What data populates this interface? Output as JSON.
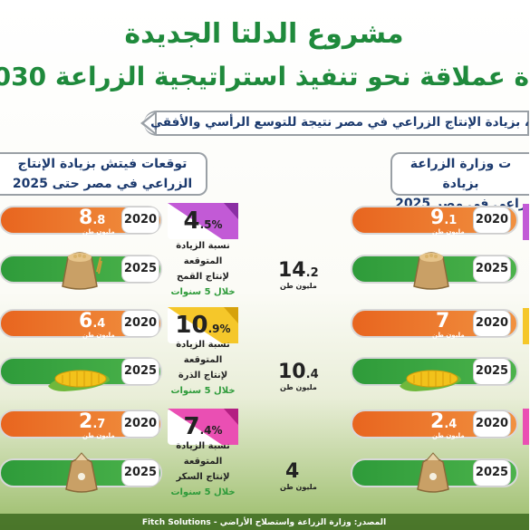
{
  "header": {
    "title": "مشروع الدلتا الجديدة",
    "subtitle": "ة عملاقة نحو تنفيذ استراتيجية الزراعة 2030",
    "banner": "، بزيادة الإنتاج الزراعي في مصر نتيجة للتوسع الرأسي والأفقي"
  },
  "fitch": {
    "heading_line1": "توقعات فيتش بزيادة الإنتاج",
    "heading_line2": "الزراعي في مصر حتى 2025",
    "items": [
      {
        "crop": "wheat",
        "year1": "2020",
        "val1": "8",
        "dec1": ".8",
        "unit": "مليون طن",
        "year2": "2025",
        "pct": "4",
        "pctdec": ".5",
        "pctsign": "%",
        "desc1": "نسبة الزيادة",
        "desc2": "المتوقعة",
        "desc3": "لإنتاج القمح",
        "desc4": "خلال 5 سنوات"
      },
      {
        "crop": "corn",
        "year1": "2020",
        "val1": "6",
        "dec1": ".4",
        "unit": "مليون طن",
        "year2": "2025",
        "pct": "10",
        "pctdec": ".9",
        "pctsign": "%",
        "desc1": "نسبة الزيادة",
        "desc2": "المتوقعة",
        "desc3": "لإنتاج الذرة",
        "desc4": "خلال 5 سنوات"
      },
      {
        "crop": "sugar",
        "year1": "2020",
        "val1": "2",
        "dec1": ".7",
        "unit": "مليون طن",
        "year2": "2025",
        "pct": "7",
        "pctdec": ".4",
        "pctsign": "%",
        "desc1": "نسبة الزيادة",
        "desc2": "المتوقعة",
        "desc3": "لإنتاج السكر",
        "desc4": "خلال 5 سنوات"
      }
    ]
  },
  "ministry": {
    "heading_line1": "ت وزارة الزراعة بزيادة",
    "heading_line2": "راعي في مصر 2025",
    "items": [
      {
        "crop": "wheat",
        "year1": "2020",
        "val1": "9",
        "dec1": ".1",
        "unit": "مليون طن",
        "year2": "2025",
        "val2": "14",
        "dec2": ".2"
      },
      {
        "crop": "corn",
        "year1": "2020",
        "val1": "7",
        "dec1": "",
        "unit": "مليون طن",
        "year2": "2025",
        "val2": "10",
        "dec2": ".4"
      },
      {
        "crop": "sugar",
        "year1": "2020",
        "val1": "2",
        "dec1": ".4",
        "unit": "مليون طن",
        "year2": "2025",
        "val2": "4",
        "dec2": ""
      }
    ]
  },
  "footer": {
    "source": "المصدر: وزارة الزراعة واستصلاح الأراضي - Fitch Solutions"
  },
  "colors": {
    "green": "#1f8a3c",
    "orange": "#e8651f",
    "navy": "#1c3a6e",
    "purple": "#b04ac8",
    "yellow": "#f2c21b",
    "pink": "#e23aa6"
  }
}
